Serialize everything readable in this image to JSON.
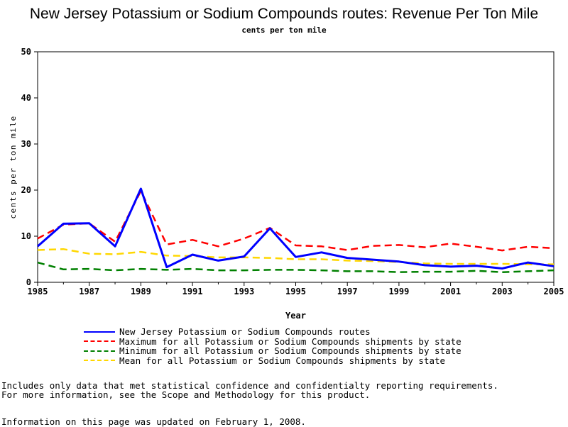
{
  "chart_data": {
    "type": "line",
    "title": "New Jersey Potassium or Sodium Compounds routes: Revenue Per Ton Mile",
    "subtitle": "cents per ton mile",
    "xlabel": "Year",
    "ylabel": "cents per ton mile",
    "xlim": [
      1985,
      2005
    ],
    "ylim": [
      0,
      50
    ],
    "x_ticks": [
      "1985",
      "1987",
      "1989",
      "1991",
      "1993",
      "1995",
      "1997",
      "1999",
      "2001",
      "2003",
      "2005"
    ],
    "y_ticks": [
      "0",
      "10",
      "20",
      "30",
      "40",
      "50"
    ],
    "x": [
      1985,
      1986,
      1987,
      1988,
      1989,
      1990,
      1991,
      1992,
      1993,
      1994,
      1995,
      1996,
      1997,
      1998,
      1999,
      2000,
      2001,
      2002,
      2003,
      2004,
      2005
    ],
    "series": [
      {
        "name": "New Jersey Potassium or Sodium Compounds routes",
        "color": "#0000ff",
        "dash": "solid",
        "values": [
          7.8,
          12.7,
          12.8,
          7.8,
          20.3,
          3.3,
          6.0,
          4.7,
          5.6,
          11.7,
          5.5,
          6.5,
          5.3,
          4.9,
          4.5,
          3.7,
          3.4,
          3.6,
          3.0,
          4.3,
          3.5
        ]
      },
      {
        "name": "Maximum for all Potassium or Sodium Compounds shipments by state",
        "color": "#ff0000",
        "dash": "dashed",
        "values": [
          9.5,
          12.5,
          12.8,
          8.8,
          19.8,
          8.2,
          9.2,
          7.8,
          9.5,
          11.8,
          8.0,
          7.8,
          7.0,
          7.9,
          8.1,
          7.6,
          8.4,
          7.7,
          6.9,
          7.7,
          7.4
        ]
      },
      {
        "name": "Minimum for all Potassium or Sodium Compounds shipments by state",
        "color": "#008000",
        "dash": "dashed",
        "values": [
          4.3,
          2.8,
          2.9,
          2.6,
          2.9,
          2.7,
          2.9,
          2.6,
          2.6,
          2.7,
          2.7,
          2.6,
          2.4,
          2.4,
          2.2,
          2.3,
          2.3,
          2.5,
          2.2,
          2.4,
          2.6
        ]
      },
      {
        "name": "Mean for all Potassium or Sodium Compounds shipments by state",
        "color": "#ffd700",
        "dash": "dashed",
        "values": [
          7.0,
          7.2,
          6.2,
          6.1,
          6.6,
          5.8,
          5.7,
          5.4,
          5.4,
          5.3,
          5.0,
          5.0,
          4.7,
          4.6,
          4.4,
          4.1,
          4.0,
          4.0,
          4.0,
          3.9,
          3.9
        ]
      }
    ],
    "grid": false,
    "legend_placement": "bottom"
  },
  "notes": {
    "line1": "Includes only data that met statistical confidence and confidentialty reporting requirements.",
    "line2": "For more information, see the Scope and Methodology for this product.",
    "updated": "Information on this page was updated on February 1, 2008."
  }
}
